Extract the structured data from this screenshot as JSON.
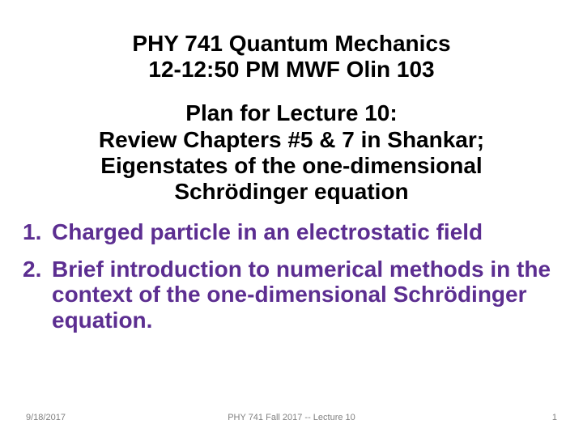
{
  "colors": {
    "background": "#ffffff",
    "text_black": "#000000",
    "accent_purple": "#5c2e91",
    "footer_gray": "#808080"
  },
  "typography": {
    "title_fontsize_pt": 21,
    "body_fontsize_pt": 21,
    "footer_fontsize_pt": 8,
    "font_family": "Arial"
  },
  "header": {
    "line1": "PHY 741 Quantum Mechanics",
    "line2": "12-12:50 PM  MWF  Olin 103"
  },
  "plan": {
    "line1": "Plan for Lecture 10:",
    "line2": "Review Chapters #5 & 7 in Shankar;",
    "line3": "Eigenstates of the one-dimensional",
    "line4": "Schrödinger equation"
  },
  "items": [
    {
      "num": "1.",
      "text": "Charged particle in an electrostatic field"
    },
    {
      "num": "2.",
      "text": "Brief introduction to numerical methods in the context of the one-dimensional Schrödinger equation."
    }
  ],
  "footer": {
    "date": "9/18/2017",
    "center": "PHY 741  Fall 2017 -- Lecture 10",
    "page": "1"
  }
}
